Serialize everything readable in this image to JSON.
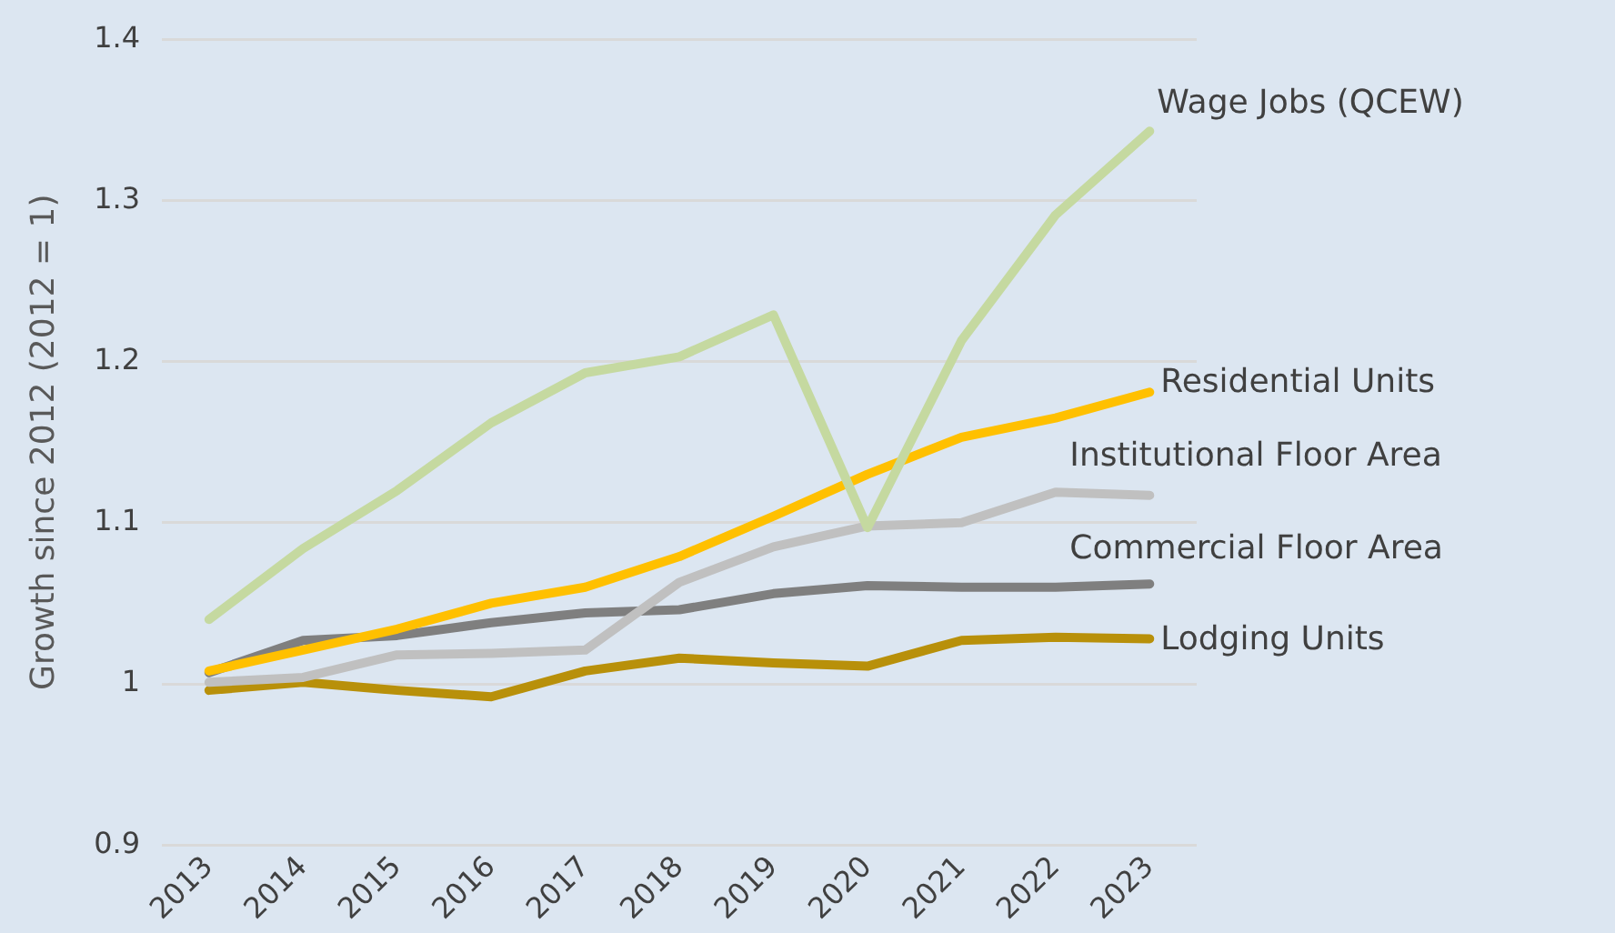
{
  "chart_data": {
    "type": "line",
    "ylabel": "Growth since 2012 (2012 = 1)",
    "categories": [
      "2013",
      "2014",
      "2015",
      "2016",
      "2017",
      "2018",
      "2019",
      "2020",
      "2021",
      "2022",
      "2023"
    ],
    "ylim": [
      0.9,
      1.4
    ],
    "yticks": [
      0.9,
      1,
      1.1,
      1.2,
      1.3,
      1.4
    ],
    "grid": "y",
    "legend": false,
    "marker": "none",
    "line_style": "solid",
    "series": [
      {
        "name": "Wage Jobs (QCEW)",
        "color": "#c5d9a0",
        "values": [
          1.04,
          1.084,
          1.12,
          1.162,
          1.193,
          1.203,
          1.229,
          1.097,
          1.213,
          1.291,
          1.343
        ]
      },
      {
        "name": "Residential Units",
        "color": "#ffc000",
        "values": [
          1.008,
          1.021,
          1.034,
          1.05,
          1.06,
          1.079,
          1.104,
          1.13,
          1.153,
          1.165,
          1.181
        ]
      },
      {
        "name": "Institutional Floor Area",
        "color": "#c0c0c0",
        "values": [
          1.001,
          1.004,
          1.018,
          1.019,
          1.021,
          1.063,
          1.085,
          1.098,
          1.1,
          1.119,
          1.117
        ]
      },
      {
        "name": "Commercial Floor Area",
        "color": "#7f7f7f",
        "values": [
          1.007,
          1.027,
          1.03,
          1.038,
          1.044,
          1.046,
          1.056,
          1.061,
          1.06,
          1.06,
          1.062
        ]
      },
      {
        "name": "Lodging Units",
        "color": "#b8900a",
        "values": [
          0.996,
          1.001,
          0.996,
          0.992,
          1.008,
          1.016,
          1.013,
          1.011,
          1.027,
          1.029,
          1.028
        ]
      }
    ]
  }
}
